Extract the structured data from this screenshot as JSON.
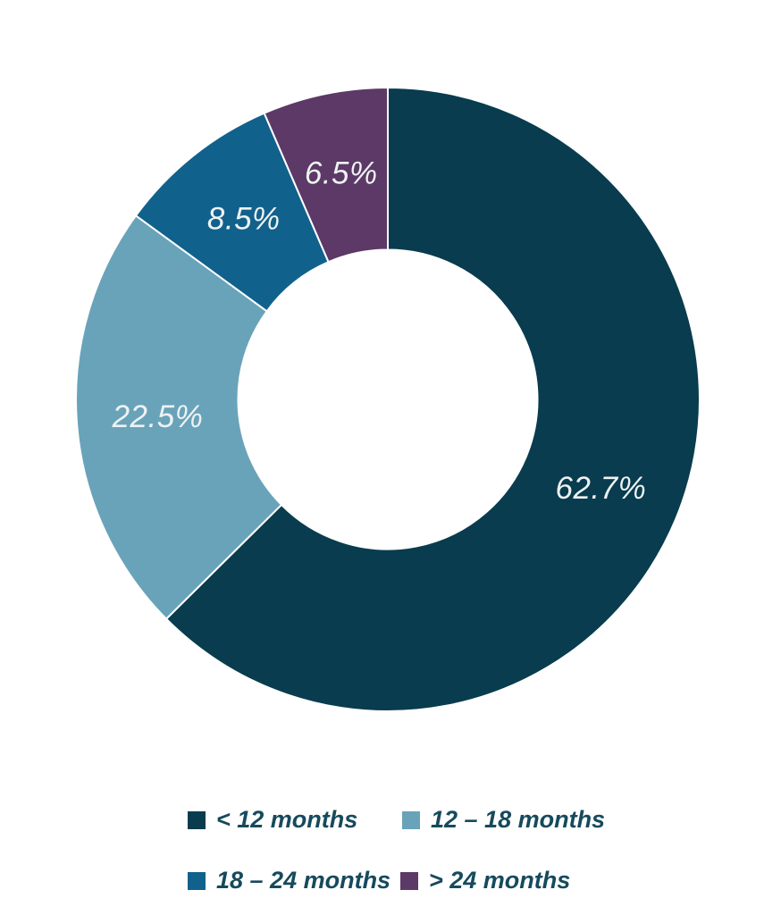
{
  "chart_data": {
    "type": "pie",
    "subtype": "donut",
    "title": "",
    "segments": [
      {
        "id": "lt-12-months",
        "label": "< 12 months",
        "value": 62.7,
        "value_label": "62.7%",
        "color": "#083c4e"
      },
      {
        "id": "12-18-months",
        "label": "12 – 18 months",
        "value": 22.5,
        "value_label": "22.5%",
        "color": "#69a3ba"
      },
      {
        "id": "18-24-months",
        "label": "18 – 24 months",
        "value": 8.5,
        "value_label": "8.5%",
        "color": "#11618d"
      },
      {
        "id": "gt-24-months",
        "label": "> 24 months",
        "value": 6.5,
        "value_label": "6.5%",
        "color": "#5c3966"
      }
    ],
    "start_angle_deg": 0,
    "direction": "clockwise",
    "inner_radius_ratio": 0.48,
    "slice_stroke_color": "#ffffff",
    "value_label_color": "#eef2f3",
    "legend_position": "bottom",
    "legend_rows": 2,
    "legend_text_color": "#164a5c",
    "background": "#ffffff"
  }
}
